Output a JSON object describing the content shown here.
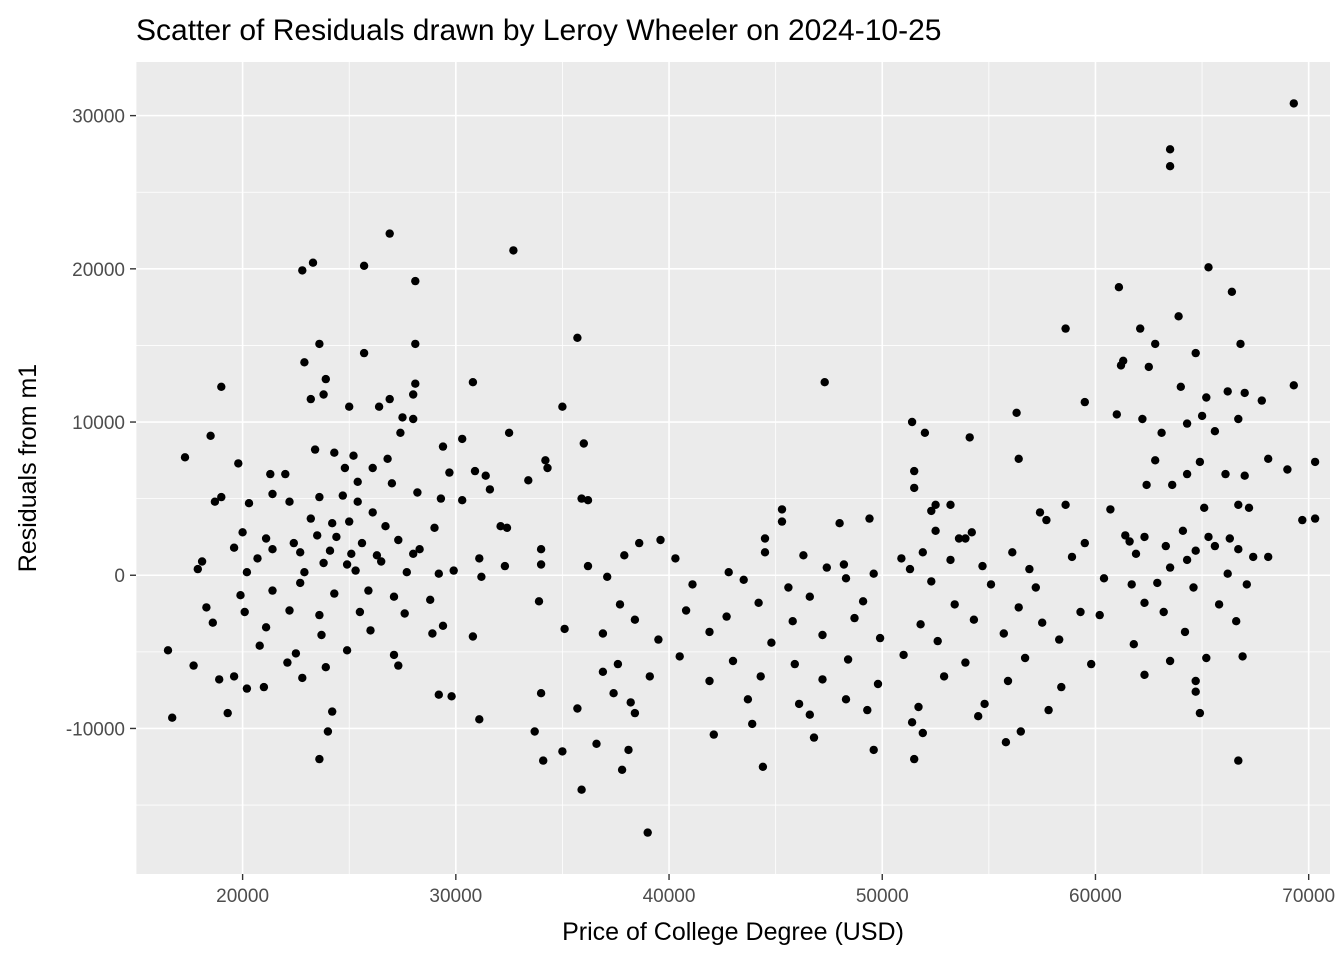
{
  "chart_data": {
    "type": "scatter",
    "title": "Scatter of Residuals drawn by Leroy Wheeler on 2024-10-25",
    "xlabel": "Price of College Degree (USD)",
    "ylabel": "Residuals from m1",
    "xlim": [
      15000,
      71000
    ],
    "ylim": [
      -19500,
      33500
    ],
    "x_ticks": [
      20000,
      30000,
      40000,
      50000,
      60000,
      70000
    ],
    "y_ticks": [
      -10000,
      0,
      10000,
      20000,
      30000
    ],
    "x_tick_labels": [
      "20000",
      "30000",
      "40000",
      "50000",
      "60000",
      "70000"
    ],
    "y_tick_labels": [
      "-10000",
      "0",
      "10000",
      "20000",
      "30000"
    ],
    "grid": true,
    "legend": "none",
    "colors": {
      "panel": "#ebebeb",
      "grid": "#ffffff",
      "point": "#000000"
    },
    "points": [
      [
        69300,
        30800
      ],
      [
        63500,
        27800
      ],
      [
        63500,
        26700
      ],
      [
        26900,
        22300
      ],
      [
        32700,
        21200
      ],
      [
        23300,
        20400
      ],
      [
        25700,
        20200
      ],
      [
        22800,
        19900
      ],
      [
        28100,
        19200
      ],
      [
        61100,
        18800
      ],
      [
        65300,
        20100
      ],
      [
        66400,
        18500
      ],
      [
        63900,
        16900
      ],
      [
        58600,
        16100
      ],
      [
        62100,
        16100
      ],
      [
        35700,
        15500
      ],
      [
        23600,
        15100
      ],
      [
        28100,
        15100
      ],
      [
        62800,
        15100
      ],
      [
        66800,
        15100
      ],
      [
        25700,
        14500
      ],
      [
        64700,
        14500
      ],
      [
        61300,
        14000
      ],
      [
        22900,
        13900
      ],
      [
        61200,
        13700
      ],
      [
        62500,
        13600
      ],
      [
        23900,
        12800
      ],
      [
        47300,
        12600
      ],
      [
        30800,
        12600
      ],
      [
        28100,
        12500
      ],
      [
        19000,
        12300
      ],
      [
        69300,
        12400
      ],
      [
        66200,
        12000
      ],
      [
        64000,
        12300
      ],
      [
        67000,
        11900
      ],
      [
        23200,
        11500
      ],
      [
        23800,
        11800
      ],
      [
        26900,
        11500
      ],
      [
        28000,
        11800
      ],
      [
        59500,
        11300
      ],
      [
        65200,
        11600
      ],
      [
        67800,
        11400
      ],
      [
        25000,
        11000
      ],
      [
        26400,
        11000
      ],
      [
        35000,
        11000
      ],
      [
        61000,
        10500
      ],
      [
        62200,
        10200
      ],
      [
        27500,
        10300
      ],
      [
        28000,
        10200
      ],
      [
        56300,
        10600
      ],
      [
        66700,
        10200
      ],
      [
        51400,
        10000
      ],
      [
        65000,
        10400
      ],
      [
        64300,
        9900
      ],
      [
        65600,
        9400
      ],
      [
        18500,
        9100
      ],
      [
        27400,
        9300
      ],
      [
        32500,
        9300
      ],
      [
        52000,
        9300
      ],
      [
        54100,
        9000
      ],
      [
        30300,
        8900
      ],
      [
        63100,
        9300
      ],
      [
        23400,
        8200
      ],
      [
        36000,
        8600
      ],
      [
        24300,
        8000
      ],
      [
        29400,
        8400
      ],
      [
        64900,
        7400
      ],
      [
        17300,
        7700
      ],
      [
        25200,
        7800
      ],
      [
        26800,
        7600
      ],
      [
        34200,
        7500
      ],
      [
        56400,
        7600
      ],
      [
        62800,
        7500
      ],
      [
        68100,
        7600
      ],
      [
        70300,
        7400
      ],
      [
        19800,
        7300
      ],
      [
        24800,
        7000
      ],
      [
        26100,
        7000
      ],
      [
        29700,
        6700
      ],
      [
        30900,
        6800
      ],
      [
        31400,
        6500
      ],
      [
        34300,
        7000
      ],
      [
        51500,
        6800
      ],
      [
        67000,
        6500
      ],
      [
        69000,
        6900
      ],
      [
        21300,
        6600
      ],
      [
        22000,
        6600
      ],
      [
        25400,
        6100
      ],
      [
        27000,
        6000
      ],
      [
        28200,
        5400
      ],
      [
        31600,
        5600
      ],
      [
        33400,
        6200
      ],
      [
        66100,
        6600
      ],
      [
        60700,
        4300
      ],
      [
        62400,
        5900
      ],
      [
        63600,
        5900
      ],
      [
        64300,
        6600
      ],
      [
        21400,
        5300
      ],
      [
        22200,
        4800
      ],
      [
        23600,
        5100
      ],
      [
        24700,
        5200
      ],
      [
        25400,
        4800
      ],
      [
        26100,
        4100
      ],
      [
        29300,
        5000
      ],
      [
        30300,
        4900
      ],
      [
        35900,
        5000
      ],
      [
        36200,
        4900
      ],
      [
        51500,
        5700
      ],
      [
        52500,
        4600
      ],
      [
        53200,
        4600
      ],
      [
        57400,
        4100
      ],
      [
        58600,
        4600
      ],
      [
        65100,
        4400
      ],
      [
        66700,
        4600
      ],
      [
        67200,
        4400
      ],
      [
        19000,
        5100
      ],
      [
        18700,
        4800
      ],
      [
        20300,
        4700
      ],
      [
        45300,
        4300
      ],
      [
        52300,
        4200
      ],
      [
        57700,
        3600
      ],
      [
        69700,
        3600
      ],
      [
        70300,
        3700
      ],
      [
        23200,
        3700
      ],
      [
        24200,
        3400
      ],
      [
        25000,
        3500
      ],
      [
        26700,
        3200
      ],
      [
        29000,
        3100
      ],
      [
        32400,
        3100
      ],
      [
        45300,
        3500
      ],
      [
        48000,
        3400
      ],
      [
        49400,
        3700
      ],
      [
        52500,
        2900
      ],
      [
        53600,
        2400
      ],
      [
        54200,
        2800
      ],
      [
        61400,
        2600
      ],
      [
        62300,
        2500
      ],
      [
        64100,
        2900
      ],
      [
        65300,
        2500
      ],
      [
        66300,
        2400
      ],
      [
        20000,
        2800
      ],
      [
        21100,
        2400
      ],
      [
        22400,
        2100
      ],
      [
        23500,
        2600
      ],
      [
        24400,
        2500
      ],
      [
        25600,
        2100
      ],
      [
        27300,
        2300
      ],
      [
        28300,
        1700
      ],
      [
        32100,
        3200
      ],
      [
        34000,
        1700
      ],
      [
        38600,
        2100
      ],
      [
        39600,
        2300
      ],
      [
        44500,
        2400
      ],
      [
        53900,
        2400
      ],
      [
        59500,
        2100
      ],
      [
        61600,
        2200
      ],
      [
        63300,
        1900
      ],
      [
        64700,
        1600
      ],
      [
        65600,
        1900
      ],
      [
        66700,
        1700
      ],
      [
        19600,
        1800
      ],
      [
        21400,
        1700
      ],
      [
        22700,
        1500
      ],
      [
        24100,
        1600
      ],
      [
        25100,
        1400
      ],
      [
        26300,
        1300
      ],
      [
        28000,
        1400
      ],
      [
        31100,
        1100
      ],
      [
        37900,
        1300
      ],
      [
        40300,
        1100
      ],
      [
        44500,
        1500
      ],
      [
        46300,
        1300
      ],
      [
        48200,
        700
      ],
      [
        50900,
        1100
      ],
      [
        51900,
        1500
      ],
      [
        53200,
        1000
      ],
      [
        56100,
        1500
      ],
      [
        58900,
        1200
      ],
      [
        61900,
        1400
      ],
      [
        64300,
        1000
      ],
      [
        67400,
        1200
      ],
      [
        68100,
        1200
      ],
      [
        18100,
        900
      ],
      [
        20700,
        1100
      ],
      [
        23800,
        800
      ],
      [
        24900,
        700
      ],
      [
        26500,
        900
      ],
      [
        29900,
        300
      ],
      [
        32300,
        600
      ],
      [
        34000,
        700
      ],
      [
        36200,
        600
      ],
      [
        42800,
        200
      ],
      [
        47400,
        500
      ],
      [
        49600,
        100
      ],
      [
        51300,
        400
      ],
      [
        54700,
        600
      ],
      [
        56900,
        400
      ],
      [
        60400,
        -200
      ],
      [
        63500,
        500
      ],
      [
        66200,
        100
      ],
      [
        17900,
        400
      ],
      [
        20200,
        200
      ],
      [
        22900,
        200
      ],
      [
        25300,
        300
      ],
      [
        27700,
        200
      ],
      [
        29200,
        100
      ],
      [
        31200,
        -100
      ],
      [
        37100,
        -100
      ],
      [
        41100,
        -600
      ],
      [
        43500,
        -300
      ],
      [
        45600,
        -800
      ],
      [
        48300,
        -200
      ],
      [
        52300,
        -400
      ],
      [
        55100,
        -600
      ],
      [
        57200,
        -800
      ],
      [
        61700,
        -600
      ],
      [
        62900,
        -500
      ],
      [
        64600,
        -800
      ],
      [
        67100,
        -600
      ],
      [
        19900,
        -1300
      ],
      [
        21400,
        -1000
      ],
      [
        22700,
        -500
      ],
      [
        24300,
        -1200
      ],
      [
        25900,
        -1000
      ],
      [
        27100,
        -1400
      ],
      [
        28800,
        -1600
      ],
      [
        33900,
        -1700
      ],
      [
        37700,
        -1900
      ],
      [
        40800,
        -2300
      ],
      [
        44200,
        -1800
      ],
      [
        46600,
        -1400
      ],
      [
        49100,
        -1700
      ],
      [
        53400,
        -1900
      ],
      [
        56400,
        -2100
      ],
      [
        59300,
        -2400
      ],
      [
        62300,
        -1800
      ],
      [
        65800,
        -1900
      ],
      [
        18300,
        -2100
      ],
      [
        20100,
        -2400
      ],
      [
        22200,
        -2300
      ],
      [
        23600,
        -2600
      ],
      [
        25500,
        -2400
      ],
      [
        27600,
        -2500
      ],
      [
        29400,
        -3300
      ],
      [
        35100,
        -3500
      ],
      [
        38400,
        -2900
      ],
      [
        42700,
        -2700
      ],
      [
        45800,
        -3000
      ],
      [
        48700,
        -2800
      ],
      [
        51800,
        -3200
      ],
      [
        54300,
        -2900
      ],
      [
        57500,
        -3100
      ],
      [
        60200,
        -2600
      ],
      [
        63200,
        -2400
      ],
      [
        66600,
        -3000
      ],
      [
        18600,
        -3100
      ],
      [
        21100,
        -3400
      ],
      [
        23700,
        -3900
      ],
      [
        26000,
        -3600
      ],
      [
        28900,
        -3800
      ],
      [
        30800,
        -4000
      ],
      [
        36900,
        -3800
      ],
      [
        39500,
        -4200
      ],
      [
        41900,
        -3700
      ],
      [
        44800,
        -4400
      ],
      [
        47200,
        -3900
      ],
      [
        49900,
        -4100
      ],
      [
        52600,
        -4300
      ],
      [
        55700,
        -3800
      ],
      [
        58300,
        -4200
      ],
      [
        61800,
        -4500
      ],
      [
        64200,
        -3700
      ],
      [
        20800,
        -4600
      ],
      [
        22500,
        -5100
      ],
      [
        24900,
        -4900
      ],
      [
        27100,
        -5200
      ],
      [
        37600,
        -5800
      ],
      [
        40500,
        -5300
      ],
      [
        43000,
        -5600
      ],
      [
        45900,
        -5800
      ],
      [
        48400,
        -5500
      ],
      [
        51000,
        -5200
      ],
      [
        53900,
        -5700
      ],
      [
        56700,
        -5400
      ],
      [
        59800,
        -5800
      ],
      [
        63500,
        -5600
      ],
      [
        65200,
        -5400
      ],
      [
        16500,
        -4900
      ],
      [
        17700,
        -5900
      ],
      [
        19600,
        -6600
      ],
      [
        22100,
        -5700
      ],
      [
        23900,
        -6000
      ],
      [
        27300,
        -5900
      ],
      [
        36900,
        -6300
      ],
      [
        39100,
        -6600
      ],
      [
        41900,
        -6900
      ],
      [
        44300,
        -6600
      ],
      [
        47200,
        -6800
      ],
      [
        49800,
        -7100
      ],
      [
        52900,
        -6600
      ],
      [
        55900,
        -6900
      ],
      [
        58400,
        -7300
      ],
      [
        62300,
        -6500
      ],
      [
        64700,
        -6900
      ],
      [
        66900,
        -5300
      ],
      [
        18900,
        -6800
      ],
      [
        20200,
        -7400
      ],
      [
        21000,
        -7300
      ],
      [
        22800,
        -6700
      ],
      [
        29200,
        -7800
      ],
      [
        29800,
        -7900
      ],
      [
        34000,
        -7700
      ],
      [
        37400,
        -7700
      ],
      [
        38200,
        -8300
      ],
      [
        43700,
        -8100
      ],
      [
        46100,
        -8400
      ],
      [
        48300,
        -8100
      ],
      [
        51700,
        -8600
      ],
      [
        54800,
        -8400
      ],
      [
        57800,
        -8800
      ],
      [
        64700,
        -7600
      ],
      [
        16700,
        -9300
      ],
      [
        19300,
        -9000
      ],
      [
        24200,
        -8900
      ],
      [
        31100,
        -9400
      ],
      [
        35700,
        -8700
      ],
      [
        38400,
        -9000
      ],
      [
        43900,
        -9700
      ],
      [
        46600,
        -9100
      ],
      [
        49300,
        -8800
      ],
      [
        51400,
        -9600
      ],
      [
        54500,
        -9200
      ],
      [
        64900,
        -9000
      ],
      [
        24000,
        -10200
      ],
      [
        33700,
        -10200
      ],
      [
        36600,
        -11000
      ],
      [
        42100,
        -10400
      ],
      [
        46800,
        -10600
      ],
      [
        49600,
        -11400
      ],
      [
        51900,
        -10300
      ],
      [
        55800,
        -10900
      ],
      [
        56500,
        -10200
      ],
      [
        23600,
        -12000
      ],
      [
        34100,
        -12100
      ],
      [
        35000,
        -11500
      ],
      [
        37800,
        -12700
      ],
      [
        38100,
        -11400
      ],
      [
        44400,
        -12500
      ],
      [
        51500,
        -12000
      ],
      [
        66700,
        -12100
      ],
      [
        35900,
        -14000
      ],
      [
        39000,
        -16800
      ]
    ]
  }
}
